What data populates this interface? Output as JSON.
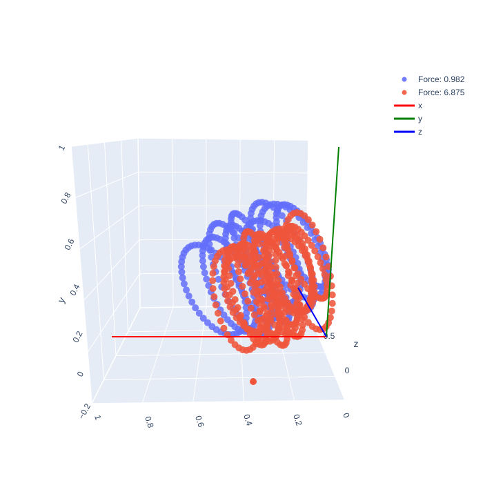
{
  "chart_data": {
    "type": "scatter3d",
    "legend_position": "top-right",
    "axes": {
      "x": {
        "title": "",
        "ticks": [
          "1",
          "0.8",
          "0.6",
          "0.4",
          "0.2",
          "0"
        ]
      },
      "y": {
        "title": "y",
        "ticks": [
          "−0.2",
          "0",
          "0.2",
          "0.4",
          "0.6",
          "0.8",
          "1"
        ]
      },
      "z": {
        "title": "z",
        "ticks": [
          "0",
          "0.5"
        ]
      }
    },
    "series": [
      {
        "name": "Force: 0.982",
        "color": "#636efa",
        "mode": "markers"
      },
      {
        "name": "Force: 6.875",
        "color": "#ef553b",
        "mode": "markers"
      },
      {
        "name": "x",
        "color": "#ff0000",
        "mode": "line"
      },
      {
        "name": "y",
        "color": "#008000",
        "mode": "line"
      },
      {
        "name": "z",
        "color": "#0000ff",
        "mode": "line"
      }
    ]
  }
}
